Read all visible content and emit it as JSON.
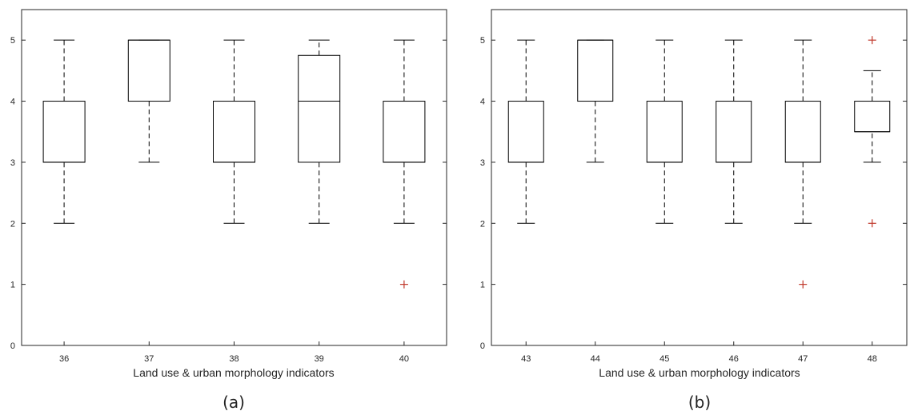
{
  "chart_data": [
    {
      "type": "box",
      "panel_label": "(a)",
      "xlabel": "Land use & urban morphology indicators",
      "ylabel": "",
      "ylim": [
        0,
        5.5
      ],
      "yticks": [
        "0",
        "1",
        "2",
        "3",
        "4",
        "5"
      ],
      "categories": [
        "36",
        "37",
        "38",
        "39",
        "40"
      ],
      "boxes": [
        {
          "category": "36",
          "whisker_low": 2,
          "q1": 3,
          "median": 3,
          "q3": 4,
          "whisker_high": 5,
          "outliers": []
        },
        {
          "category": "37",
          "whisker_low": 3,
          "q1": 4,
          "median": 5,
          "q3": 5,
          "whisker_high": 5,
          "outliers": []
        },
        {
          "category": "38",
          "whisker_low": 2,
          "q1": 3,
          "median": 3,
          "q3": 4,
          "whisker_high": 5,
          "outliers": []
        },
        {
          "category": "39",
          "whisker_low": 2,
          "q1": 3,
          "median": 4,
          "q3": 4.75,
          "whisker_high": 5,
          "outliers": []
        },
        {
          "category": "40",
          "whisker_low": 2,
          "q1": 3,
          "median": 3,
          "q3": 4,
          "whisker_high": 5,
          "outliers": [
            1
          ]
        }
      ],
      "grid": false,
      "colors": {
        "box": "#000000",
        "outlier": "#c0392b",
        "axis": "#262626"
      }
    },
    {
      "type": "box",
      "panel_label": "(b)",
      "xlabel": "Land use & urban morphology indicators",
      "ylabel": "",
      "ylim": [
        0,
        5.5
      ],
      "yticks": [
        "0",
        "1",
        "2",
        "3",
        "4",
        "5"
      ],
      "categories": [
        "43",
        "44",
        "45",
        "46",
        "47",
        "48"
      ],
      "boxes": [
        {
          "category": "43",
          "whisker_low": 2,
          "q1": 3,
          "median": 3,
          "q3": 4,
          "whisker_high": 5,
          "outliers": []
        },
        {
          "category": "44",
          "whisker_low": 3,
          "q1": 4,
          "median": 5,
          "q3": 5,
          "whisker_high": 5,
          "outliers": []
        },
        {
          "category": "45",
          "whisker_low": 2,
          "q1": 3,
          "median": 3,
          "q3": 4,
          "whisker_high": 5,
          "outliers": []
        },
        {
          "category": "46",
          "whisker_low": 2,
          "q1": 3,
          "median": 3,
          "q3": 4,
          "whisker_high": 5,
          "outliers": []
        },
        {
          "category": "47",
          "whisker_low": 2,
          "q1": 3,
          "median": 3,
          "q3": 4,
          "whisker_high": 5,
          "outliers": [
            1
          ]
        },
        {
          "category": "48",
          "whisker_low": 3,
          "q1": 3.5,
          "median": 3.5,
          "q3": 4,
          "whisker_high": 4.5,
          "outliers": [
            2,
            5
          ]
        }
      ],
      "grid": false,
      "colors": {
        "box": "#000000",
        "outlier": "#c0392b",
        "axis": "#262626"
      }
    }
  ]
}
